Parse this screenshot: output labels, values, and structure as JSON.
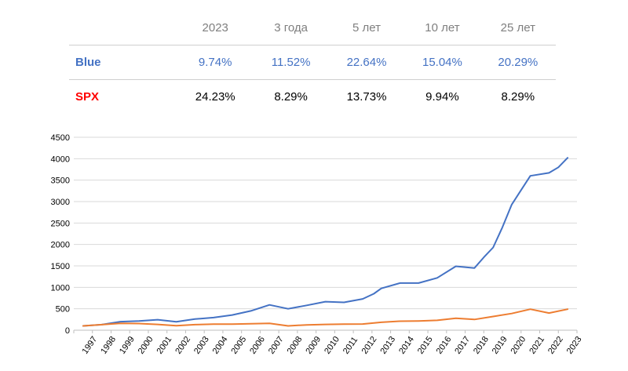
{
  "table": {
    "columns": [
      "2023",
      "3 года",
      "5 лет",
      "10 лет",
      "25 лет"
    ],
    "rows": [
      {
        "name": "Blue",
        "values": [
          "9.74%",
          "11.52%",
          "22.64%",
          "15.04%",
          "20.29%"
        ]
      },
      {
        "name": "SPX",
        "values": [
          "24.23%",
          "8.29%",
          "13.73%",
          "9.94%",
          "8.29%"
        ]
      }
    ]
  },
  "colors": {
    "blue_line": "#4472c4",
    "orange_line": "#ed7d31",
    "spx_label": "#ff0000",
    "header": "#7f7f7f",
    "grid": "#d9d9d9"
  },
  "chart_data": {
    "type": "line",
    "title": "",
    "xlabel": "",
    "ylabel": "",
    "ylim": [
      0,
      4500
    ],
    "yticks": [
      "0",
      "500",
      "1000",
      "1500",
      "2000",
      "2500",
      "3000",
      "3500",
      "4000",
      "4500"
    ],
    "categories": [
      "1997",
      "1998",
      "1999",
      "2000",
      "2001",
      "2002",
      "2003",
      "2004",
      "2005",
      "2006",
      "2007",
      "2008",
      "2009",
      "2010",
      "2011",
      "2012",
      "2013",
      "2014",
      "2015",
      "2016",
      "2017",
      "2018",
      "2019",
      "2020",
      "2021",
      "2022",
      "2023"
    ],
    "series": [
      {
        "name": "Blue",
        "color": "#4472c4",
        "points": [
          [
            0,
            100
          ],
          [
            1,
            130
          ],
          [
            2,
            200
          ],
          [
            3,
            215
          ],
          [
            4,
            245
          ],
          [
            5,
            195
          ],
          [
            6,
            260
          ],
          [
            7,
            295
          ],
          [
            8,
            355
          ],
          [
            9,
            450
          ],
          [
            10,
            590
          ],
          [
            11,
            500
          ],
          [
            12,
            580
          ],
          [
            13,
            665
          ],
          [
            14,
            650
          ],
          [
            15,
            730
          ],
          [
            15.6,
            850
          ],
          [
            16,
            975
          ],
          [
            17,
            1100
          ],
          [
            18,
            1100
          ],
          [
            19,
            1220
          ],
          [
            20,
            1490
          ],
          [
            21,
            1450
          ],
          [
            21.5,
            1700
          ],
          [
            22,
            1930
          ],
          [
            22.5,
            2400
          ],
          [
            23,
            2930
          ],
          [
            23.4,
            3200
          ],
          [
            24,
            3600
          ],
          [
            25,
            3670
          ],
          [
            25.5,
            3800
          ],
          [
            26,
            4020
          ]
        ]
      },
      {
        "name": "SPX",
        "color": "#ed7d31",
        "points": [
          [
            0,
            100
          ],
          [
            1,
            130
          ],
          [
            2,
            160
          ],
          [
            3,
            155
          ],
          [
            4,
            135
          ],
          [
            5,
            105
          ],
          [
            6,
            130
          ],
          [
            7,
            140
          ],
          [
            8,
            140
          ],
          [
            9,
            150
          ],
          [
            10,
            160
          ],
          [
            11,
            100
          ],
          [
            12,
            125
          ],
          [
            13,
            135
          ],
          [
            14,
            140
          ],
          [
            15,
            145
          ],
          [
            16,
            185
          ],
          [
            17,
            210
          ],
          [
            18,
            215
          ],
          [
            19,
            230
          ],
          [
            20,
            280
          ],
          [
            21,
            250
          ],
          [
            22,
            320
          ],
          [
            23,
            390
          ],
          [
            24,
            490
          ],
          [
            25,
            400
          ],
          [
            26,
            490
          ]
        ]
      }
    ]
  }
}
